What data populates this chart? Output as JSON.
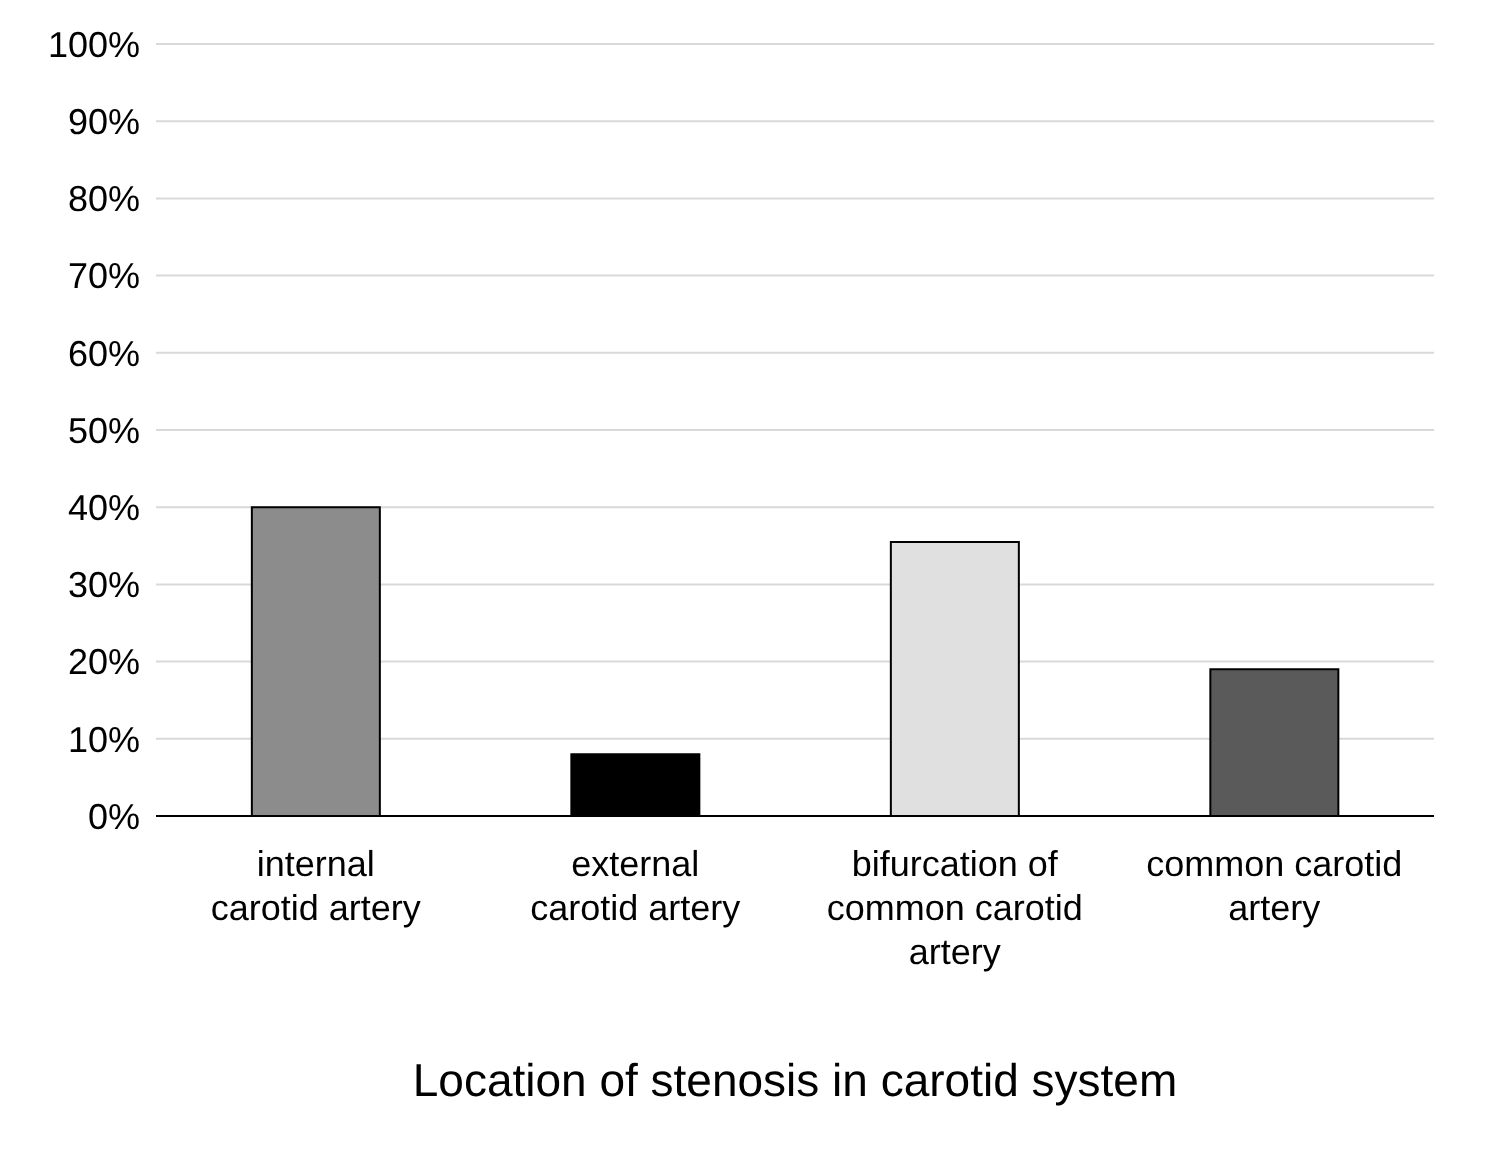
{
  "chart_data": {
    "type": "bar",
    "xlabel": "Location of stenosis in carotid system",
    "categories": [
      "internal carotid artery",
      "external carotid artery",
      "bifurcation of common carotid artery",
      "common carotid artery"
    ],
    "values": [
      40,
      8,
      35.5,
      19
    ],
    "colors": [
      "#8c8c8c",
      "#000000",
      "#e0e0e0",
      "#5a5a5a"
    ],
    "ylim": [
      0,
      100
    ],
    "yticks": [
      {
        "value": 0,
        "label": "0%"
      },
      {
        "value": 10,
        "label": "10%"
      },
      {
        "value": 20,
        "label": "20%"
      },
      {
        "value": 30,
        "label": "30%"
      },
      {
        "value": 40,
        "label": "40%"
      },
      {
        "value": 50,
        "label": "50%"
      },
      {
        "value": 60,
        "label": "60%"
      },
      {
        "value": 70,
        "label": "70%"
      },
      {
        "value": 80,
        "label": "80%"
      },
      {
        "value": 90,
        "label": "90%"
      },
      {
        "value": 100,
        "label": "100%"
      }
    ],
    "grid": "y"
  }
}
